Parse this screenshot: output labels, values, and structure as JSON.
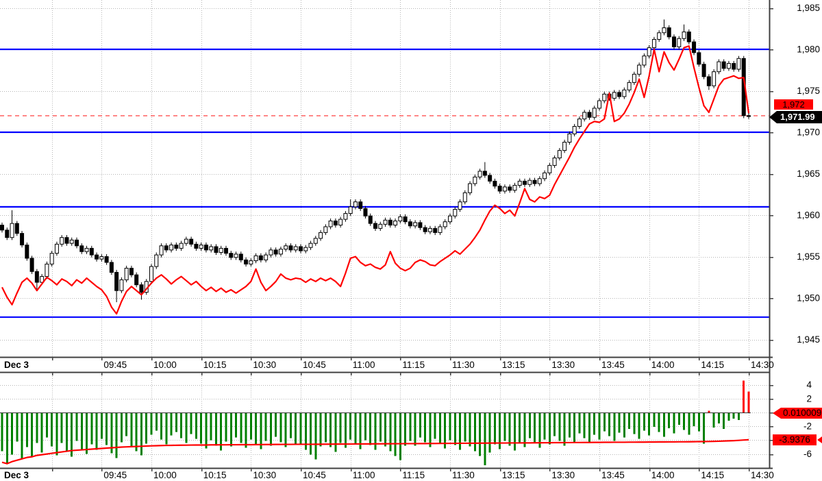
{
  "window": {
    "description": "intraday candlestick trading chart with lower oscillator panel"
  },
  "colors": {
    "background": "#ffffff",
    "grid": "#b4b4b4",
    "axis": "#404040",
    "support_line_blue": "#0000ff",
    "overlay_line_red": "#ff0000",
    "last_price_dash": "#ff5050",
    "candle_up_fill": "#ffffff",
    "candle_down_fill": "#000000",
    "candle_stroke": "#000000",
    "hist_negative_green": "#008000",
    "hist_positive_red": "#ff0000",
    "signal_line_red": "#ff0000",
    "tag_red_bg": "#ff0000",
    "tag_black_bg": "#000000"
  },
  "tags": {
    "price_rounded": "1,972",
    "last_price": "1,971.99",
    "indicator_value": "0.010009",
    "signal_value": "-3.9376"
  },
  "axes": {
    "main_y": {
      "labels": [
        "1,985",
        "1,980",
        "1,975",
        "1,970",
        "1,965",
        "1,960",
        "1,955",
        "1,950",
        "1,945"
      ],
      "values": [
        1985,
        1980,
        1975,
        1970,
        1965,
        1960,
        1955,
        1950,
        1945
      ]
    },
    "lower_y": {
      "labels": [
        "4",
        "2",
        "-2",
        "-6"
      ],
      "values": [
        4,
        2,
        -2,
        -6
      ],
      "grid_values": [
        4,
        2,
        0,
        -2,
        -4,
        -6
      ]
    },
    "x": {
      "session_label": "Dec 3",
      "time_labels": [
        "09:45",
        "10:00",
        "10:15",
        "10:30",
        "10:45",
        "11:00",
        "11:15",
        "11:30",
        "13:15",
        "13:30",
        "13:45",
        "14:00",
        "14:15",
        "14:30"
      ],
      "tick_count": 15
    }
  },
  "chart_data": [
    {
      "type": "candlestick",
      "title": "",
      "bar_interval_minutes": 1.5,
      "session": "Dec 3 09:15-11:30, 13:00-14:30",
      "ylim": [
        1942.9,
        1986
      ],
      "blue_levels": [
        1980.0,
        1970.0,
        1961.0,
        1947.7
      ],
      "last_price": 1971.99,
      "open_first": 1958.8,
      "closes": [
        1958.2,
        1957.3,
        1959.0,
        1957.8,
        1956.4,
        1954.8,
        1953.2,
        1951.9,
        1952.6,
        1954.1,
        1955.4,
        1956.5,
        1957.3,
        1956.6,
        1957.0,
        1956.3,
        1955.6,
        1956.0,
        1955.2,
        1954.7,
        1955.0,
        1954.3,
        1953.1,
        1950.9,
        1952.2,
        1953.6,
        1952.8,
        1951.6,
        1950.7,
        1952.0,
        1953.8,
        1955.2,
        1956.3,
        1955.8,
        1956.4,
        1956.0,
        1956.6,
        1957.1,
        1956.5,
        1956.0,
        1956.4,
        1955.8,
        1956.2,
        1955.5,
        1956.0,
        1955.4,
        1954.9,
        1955.3,
        1954.6,
        1954.1,
        1954.5,
        1955.1,
        1954.6,
        1955.2,
        1955.8,
        1955.3,
        1955.9,
        1956.3,
        1955.8,
        1956.2,
        1955.7,
        1956.1,
        1956.6,
        1957.2,
        1957.9,
        1958.6,
        1959.3,
        1958.8,
        1959.5,
        1960.2,
        1961.0,
        1961.6,
        1960.8,
        1959.9,
        1959.0,
        1958.4,
        1958.9,
        1959.4,
        1958.8,
        1959.3,
        1959.8,
        1959.2,
        1958.7,
        1959.1,
        1958.5,
        1958.0,
        1958.4,
        1957.9,
        1958.6,
        1959.2,
        1959.9,
        1960.7,
        1961.6,
        1962.7,
        1963.8,
        1964.6,
        1965.3,
        1964.8,
        1964.1,
        1963.5,
        1962.9,
        1963.4,
        1963.0,
        1963.6,
        1964.1,
        1963.7,
        1964.2,
        1963.8,
        1964.4,
        1965.1,
        1966.0,
        1966.9,
        1967.8,
        1968.8,
        1969.8,
        1970.7,
        1971.6,
        1972.4,
        1971.8,
        1972.9,
        1973.8,
        1974.6,
        1974.1,
        1974.8,
        1974.3,
        1975.1,
        1976.0,
        1977.0,
        1978.1,
        1979.2,
        1980.2,
        1981.2,
        1982.0,
        1982.6,
        1981.5,
        1980.3,
        1981.3,
        1982.1,
        1980.9,
        1979.6,
        1978.2,
        1976.7,
        1975.6,
        1977.3,
        1978.5,
        1977.7,
        1978.3,
        1977.6,
        1978.9,
        1972.0,
        1971.99
      ],
      "wick_high_extra": {
        "2": 1.6,
        "70": 0.9,
        "97": 1.1,
        "133": 1.0,
        "137": 0.9,
        "150": 0.4
      },
      "wick_low_extra": {
        "7": 1.0,
        "23": 1.4,
        "28": 0.9,
        "142": 0.5,
        "150": 0.4
      },
      "overlay_line": [
        1951.3,
        1950.1,
        1949.2,
        1950.6,
        1951.9,
        1952.4,
        1951.8,
        1950.9,
        1951.7,
        1952.5,
        1952.1,
        1951.6,
        1952.3,
        1952.0,
        1951.5,
        1952.2,
        1951.8,
        1952.4,
        1951.9,
        1951.4,
        1951.0,
        1950.2,
        1948.9,
        1948.1,
        1949.6,
        1950.8,
        1951.4,
        1950.9,
        1950.4,
        1951.1,
        1951.8,
        1952.4,
        1952.8,
        1952.3,
        1951.7,
        1952.2,
        1952.6,
        1952.1,
        1951.6,
        1952.0,
        1951.4,
        1950.9,
        1951.3,
        1950.8,
        1951.2,
        1950.7,
        1951.0,
        1950.6,
        1951.0,
        1951.4,
        1952.0,
        1953.5,
        1951.9,
        1950.9,
        1951.4,
        1952.0,
        1952.9,
        1952.4,
        1952.2,
        1952.4,
        1952.3,
        1951.9,
        1952.3,
        1952.0,
        1952.4,
        1952.1,
        1952.4,
        1952.0,
        1951.4,
        1953.0,
        1954.8,
        1955.0,
        1954.3,
        1953.9,
        1954.1,
        1953.7,
        1953.5,
        1954.0,
        1955.6,
        1954.2,
        1953.6,
        1953.3,
        1953.6,
        1954.3,
        1954.6,
        1954.4,
        1954.0,
        1953.9,
        1954.4,
        1954.8,
        1955.2,
        1955.7,
        1955.3,
        1955.9,
        1956.5,
        1957.3,
        1958.2,
        1959.4,
        1960.5,
        1961.2,
        1960.8,
        1960.2,
        1960.6,
        1959.9,
        1961.5,
        1963.2,
        1961.9,
        1961.6,
        1962.2,
        1962.0,
        1962.4,
        1963.7,
        1964.8,
        1965.9,
        1967.0,
        1968.2,
        1969.2,
        1970.1,
        1971.0,
        1971.3,
        1971.2,
        1971.6,
        1974.7,
        1971.3,
        1971.6,
        1972.3,
        1973.4,
        1974.8,
        1976.4,
        1974.2,
        1976.8,
        1980.0,
        1977.3,
        1979.7,
        1978.4,
        1977.5,
        1978.8,
        1980.2,
        1980.4,
        1977.8,
        1975.4,
        1973.2,
        1972.4,
        1974.0,
        1975.6,
        1976.4,
        1976.6,
        1976.8,
        1976.5,
        1976.6,
        1972.3
      ]
    },
    {
      "type": "bar",
      "title": "",
      "ylim": [
        -8,
        5
      ],
      "values": [
        -5.6,
        -7.3,
        -6.1,
        -4.2,
        -6.8,
        -5.0,
        -6.5,
        -4.4,
        -5.8,
        -3.6,
        -4.9,
        -6.2,
        -4.4,
        -5.7,
        -6.4,
        -4.1,
        -5.3,
        -6.0,
        -4.6,
        -5.4,
        -3.8,
        -4.7,
        -5.9,
        -6.6,
        -4.3,
        -3.4,
        -4.9,
        -5.6,
        -6.2,
        -4.5,
        -3.2,
        -2.6,
        -3.9,
        -4.6,
        -3.3,
        -2.8,
        -3.7,
        -4.4,
        -3.1,
        -3.8,
        -4.5,
        -5.2,
        -4.0,
        -4.8,
        -5.5,
        -4.2,
        -4.9,
        -3.6,
        -4.4,
        -5.1,
        -3.9,
        -4.6,
        -5.3,
        -4.1,
        -4.8,
        -3.5,
        -4.3,
        -5.0,
        -3.7,
        -4.5,
        -4.7,
        -5.4,
        -6.1,
        -6.8,
        -4.9,
        -4.3,
        -5.0,
        -5.7,
        -4.4,
        -5.1,
        -3.9,
        -4.6,
        -5.3,
        -4.0,
        -4.7,
        -5.4,
        -4.2,
        -4.9,
        -5.6,
        -6.3,
        -6.9,
        -4.8,
        -4.1,
        -4.8,
        -3.6,
        -4.3,
        -5.0,
        -3.8,
        -4.5,
        -5.2,
        -4.0,
        -4.7,
        -5.4,
        -4.2,
        -4.9,
        -5.6,
        -6.3,
        -7.6,
        -5.8,
        -4.6,
        -5.3,
        -4.1,
        -4.8,
        -5.5,
        -4.3,
        -5.0,
        -3.7,
        -4.4,
        -5.1,
        -3.9,
        -4.6,
        -3.4,
        -4.1,
        -4.8,
        -3.6,
        -4.3,
        -3.0,
        -3.7,
        -4.4,
        -3.2,
        -3.9,
        -2.7,
        -3.4,
        -4.1,
        -2.9,
        -3.6,
        -2.4,
        -3.1,
        -3.8,
        -2.6,
        -3.3,
        -2.1,
        -2.8,
        -3.5,
        -2.3,
        -3.0,
        -1.8,
        -2.5,
        -3.2,
        -2.0,
        -2.7,
        -4.5,
        0.25,
        -2.2,
        -1.6,
        -2.4,
        -1.2,
        -0.9,
        -1.1,
        4.6,
        3.0
      ],
      "signal_line": [
        -7.2,
        -7.4,
        -7.1,
        -6.9,
        -6.7,
        -6.5,
        -6.4,
        -6.2,
        -6.1,
        -6.0,
        -5.9,
        -5.8,
        -5.7,
        -5.6,
        -5.5,
        -5.45,
        -5.4,
        -5.35,
        -5.3,
        -5.25,
        -5.2,
        -5.15,
        -5.1,
        -5.05,
        -5.0,
        -4.97,
        -4.94,
        -4.91,
        -4.88,
        -4.85,
        -4.82,
        -4.8,
        -4.78,
        -4.76,
        -4.75,
        -4.74,
        -4.73,
        -4.72,
        -4.71,
        -4.7,
        -4.7,
        -4.7,
        -4.68,
        -4.68,
        -4.67,
        -4.67,
        -4.66,
        -4.66,
        -4.65,
        -4.65,
        -4.65,
        -4.64,
        -4.64,
        -4.63,
        -4.63,
        -4.62,
        -4.62,
        -4.61,
        -4.61,
        -4.6,
        -4.6,
        -4.6,
        -4.6,
        -4.59,
        -4.59,
        -4.58,
        -4.58,
        -4.57,
        -4.57,
        -4.56,
        -4.56,
        -4.55,
        -4.55,
        -4.54,
        -4.54,
        -4.53,
        -4.53,
        -4.52,
        -4.52,
        -4.51,
        -4.51,
        -4.5,
        -4.5,
        -4.5,
        -4.49,
        -4.49,
        -4.48,
        -4.48,
        -4.47,
        -4.47,
        -4.46,
        -4.46,
        -4.45,
        -4.45,
        -4.44,
        -4.44,
        -4.43,
        -4.43,
        -4.42,
        -4.42,
        -4.41,
        -4.41,
        -4.4,
        -4.4,
        -4.4,
        -4.39,
        -4.39,
        -4.38,
        -4.38,
        -4.37,
        -4.37,
        -4.36,
        -4.36,
        -4.35,
        -4.35,
        -4.34,
        -4.34,
        -4.33,
        -4.33,
        -4.32,
        -4.32,
        -4.31,
        -4.31,
        -4.3,
        -4.3,
        -4.3,
        -4.29,
        -4.29,
        -4.28,
        -4.28,
        -4.27,
        -4.27,
        -4.26,
        -4.26,
        -4.25,
        -4.25,
        -4.24,
        -4.24,
        -4.23,
        -4.22,
        -4.21,
        -4.2,
        -4.19,
        -4.17,
        -4.15,
        -4.12,
        -4.1,
        -4.07,
        -4.03,
        -3.98,
        -3.9376
      ],
      "last_signal_value": -3.9376,
      "last_indicator_tag": "0.010009"
    }
  ]
}
